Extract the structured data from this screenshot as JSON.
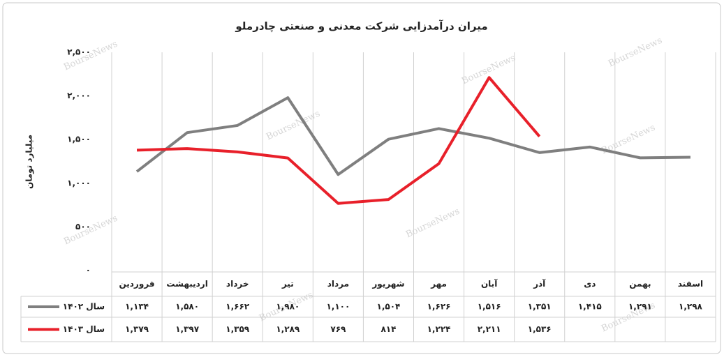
{
  "chart_data": {
    "type": "line",
    "title": "میران درآمدزایی شرکت معدنی و صنعتی چادرملو",
    "y_label": "میلیارد تومان",
    "watermark": "BourseNews",
    "categories": [
      "فروردین",
      "اردیبهشت",
      "خرداد",
      "تیر",
      "مرداد",
      "شهریور",
      "مهر",
      "آبان",
      "آذر",
      "دی",
      "بهمن",
      "اسفند"
    ],
    "series": [
      {
        "name": "سال ۱۴۰۲",
        "color": "#7f7f7f",
        "values": [
          1134,
          1580,
          1662,
          1980,
          1100,
          1504,
          1626,
          1516,
          1351,
          1415,
          1291,
          1298
        ],
        "value_labels": [
          "۱,۱۳۴",
          "۱,۵۸۰",
          "۱,۶۶۲",
          "۱,۹۸۰",
          "۱,۱۰۰",
          "۱,۵۰۴",
          "۱,۶۲۶",
          "۱,۵۱۶",
          "۱,۳۵۱",
          "۱,۴۱۵",
          "۱,۲۹۱",
          "۱,۲۹۸"
        ]
      },
      {
        "name": "سال ۱۴۰۳",
        "color": "#e8202a",
        "values": [
          1379,
          1397,
          1359,
          1289,
          769,
          814,
          1224,
          2211,
          1536,
          null,
          null,
          null
        ],
        "value_labels": [
          "۱,۳۷۹",
          "۱,۳۹۷",
          "۱,۳۵۹",
          "۱,۲۸۹",
          "۷۶۹",
          "۸۱۴",
          "۱,۲۲۴",
          "۲,۲۱۱",
          "۱,۵۳۶",
          null,
          null,
          null
        ]
      }
    ],
    "ylim": [
      0,
      2500
    ],
    "yticks": [
      {
        "value": 0,
        "label": "۰"
      },
      {
        "value": 500,
        "label": "۵۰۰"
      },
      {
        "value": 1000,
        "label": "۱,۰۰۰"
      },
      {
        "value": 1500,
        "label": "۱,۵۰۰"
      },
      {
        "value": 2000,
        "label": "۲,۰۰۰"
      },
      {
        "value": 2500,
        "label": "۲,۵۰۰"
      }
    ],
    "grid": false
  }
}
